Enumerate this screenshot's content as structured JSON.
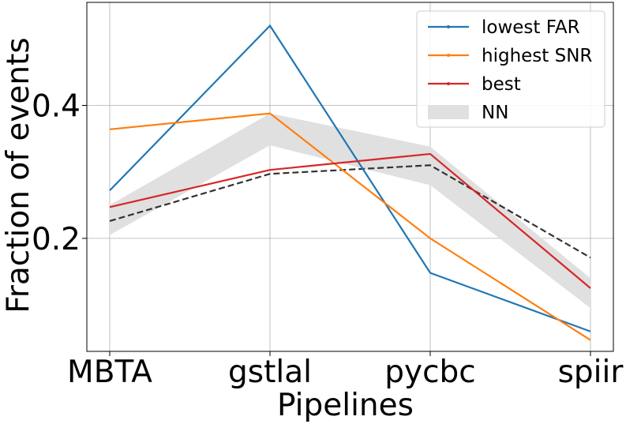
{
  "chart_data": {
    "type": "line",
    "title": "",
    "xlabel": "Pipelines",
    "ylabel": "Fraction of events",
    "categories": [
      "MBTA",
      "gstlal",
      "pycbc",
      "spiir"
    ],
    "ylim": [
      0.03,
      0.555
    ],
    "yticks": [
      0.2,
      0.4
    ],
    "ytick_labels": [
      "0.2",
      "0.4"
    ],
    "grid": true,
    "legend_position": "top-right",
    "series": [
      {
        "name": "lowest FAR",
        "color": "#1f77b4",
        "style": "solid",
        "values": [
          0.272,
          0.52,
          0.148,
          0.06
        ]
      },
      {
        "name": "highest SNR",
        "color": "#ff7f0e",
        "style": "solid",
        "values": [
          0.364,
          0.388,
          0.2,
          0.047
        ]
      },
      {
        "name": "best",
        "color": "#d62728",
        "style": "solid",
        "values": [
          0.247,
          0.303,
          0.327,
          0.125
        ]
      },
      {
        "name": "",
        "color": "#333333",
        "style": "dashed",
        "values": [
          0.226,
          0.297,
          0.31,
          0.171
        ]
      }
    ],
    "band": {
      "name": "NN",
      "color": "#e0e0e0",
      "upper": [
        0.25,
        0.388,
        0.338,
        0.14
      ],
      "lower": [
        0.205,
        0.34,
        0.28,
        0.095
      ]
    }
  }
}
